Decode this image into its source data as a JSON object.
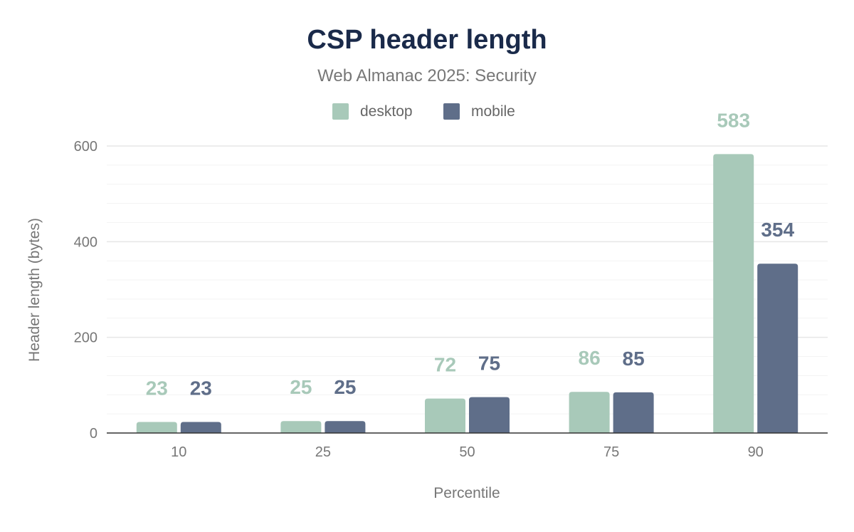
{
  "chart_data": {
    "type": "bar",
    "title": "CSP header length",
    "subtitle": "Web Almanac 2025: Security",
    "xlabel": "Percentile",
    "ylabel": "Header length (bytes)",
    "categories": [
      "10",
      "25",
      "50",
      "75",
      "90"
    ],
    "ylim": [
      0,
      600
    ],
    "yticks": [
      0,
      200,
      400,
      600
    ],
    "grid": true,
    "legend_position": "top",
    "series": [
      {
        "name": "desktop",
        "color": "#a8c9b9",
        "values": [
          23,
          25,
          72,
          86,
          583
        ]
      },
      {
        "name": "mobile",
        "color": "#5f6e89",
        "values": [
          23,
          25,
          75,
          85,
          354
        ]
      }
    ]
  }
}
